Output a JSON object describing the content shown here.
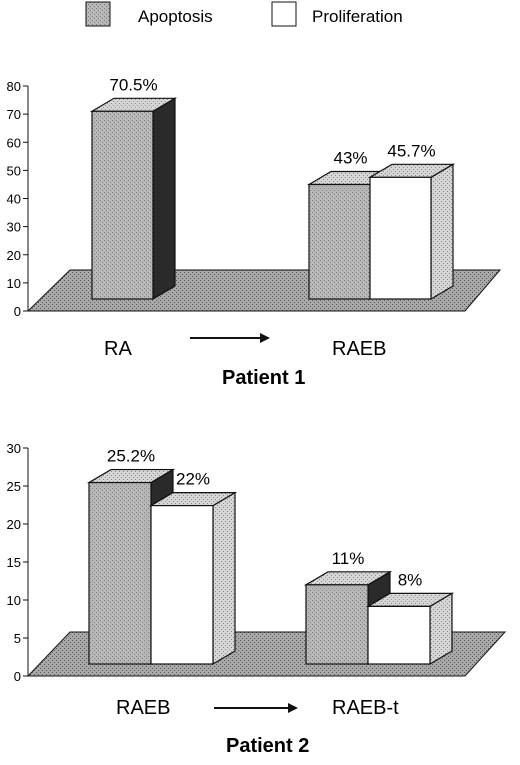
{
  "legend": [
    {
      "label": "Apoptosis",
      "swatch": "stipple"
    },
    {
      "label": "Proliferation",
      "swatch": "white"
    }
  ],
  "colors": {
    "apoptosis_front": "#b8b8b8",
    "apoptosis_side": "#2a2a2a",
    "proliferation_front": "#ffffff",
    "proliferation_side": "#c8c8c8",
    "floor": "#a9a9a9",
    "ink": "#111111"
  },
  "chart_data": [
    {
      "type": "bar",
      "title": "Patient 1",
      "ylim": [
        0,
        80
      ],
      "yticks": [
        0,
        10,
        20,
        30,
        40,
        50,
        60,
        70,
        80
      ],
      "categories": [
        "RA",
        "RAEB"
      ],
      "transition_arrow": true,
      "series": [
        {
          "name": "Apoptosis",
          "values": [
            70.5,
            43
          ],
          "labels": [
            "70.5%",
            "43%"
          ]
        },
        {
          "name": "Proliferation",
          "values": [
            null,
            45.7
          ],
          "labels": [
            null,
            "45.7%"
          ]
        }
      ]
    },
    {
      "type": "bar",
      "title": "Patient 2",
      "ylim": [
        0,
        30
      ],
      "yticks": [
        0,
        5,
        10,
        15,
        20,
        25,
        30
      ],
      "categories": [
        "RAEB",
        "RAEB-t"
      ],
      "transition_arrow": true,
      "series": [
        {
          "name": "Apoptosis",
          "values": [
            25.2,
            11
          ],
          "labels": [
            "25.2%",
            "11%"
          ]
        },
        {
          "name": "Proliferation",
          "values": [
            22,
            8
          ],
          "labels": [
            "22%",
            "8%"
          ]
        }
      ]
    }
  ]
}
